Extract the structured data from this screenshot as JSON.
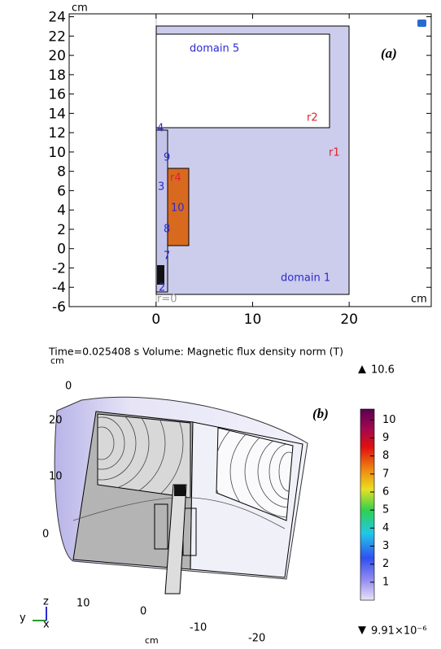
{
  "panel_a": {
    "label": "(a)",
    "x_unit": "cm",
    "y_unit": "cm",
    "xlim": [
      -9,
      28.5
    ],
    "ylim": [
      -6,
      24.3
    ],
    "xticks": [
      0,
      10,
      20
    ],
    "yticks": [
      -6,
      -4,
      -2,
      0,
      2,
      4,
      6,
      8,
      10,
      12,
      14,
      16,
      18,
      20,
      22,
      24
    ],
    "annotations": [
      "domain 5",
      "r2",
      "r1",
      "r4",
      "10",
      "domain 1",
      "r=0",
      "4",
      "9",
      "3",
      "8",
      "7",
      "2"
    ]
  },
  "title": "Time=0.025408 s  Volume: Magnetic flux density norm (T)",
  "panel_b": {
    "label": "(b)",
    "unit": "cm",
    "top_tick": 0,
    "z_ticks": [
      20,
      10,
      0
    ],
    "x_ticks": [
      10,
      0,
      -10,
      -20
    ],
    "triad": [
      "z",
      "y",
      "x"
    ],
    "colorbar": {
      "max": 10.6,
      "min": {
        "value": 9.91e-06,
        "label": "9.91×10⁻⁶"
      },
      "ticks": [
        10,
        9,
        8,
        7,
        6,
        5,
        4,
        3,
        2,
        1
      ]
    }
  }
}
